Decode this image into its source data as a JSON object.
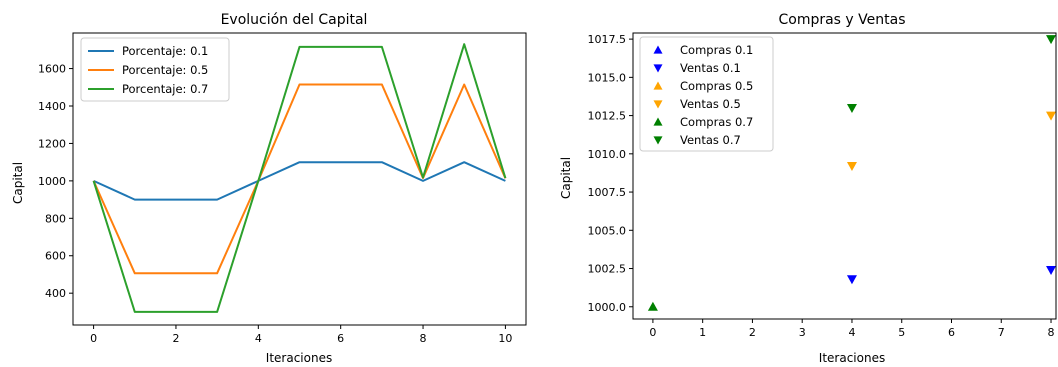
{
  "chart_data": [
    {
      "type": "line",
      "title": "Evolución del Capital",
      "xlabel": "Iteraciones",
      "ylabel": "Capital",
      "xlim": [
        -0.5,
        10.5
      ],
      "ylim": [
        230,
        1790
      ],
      "xticks": [
        "0",
        "2",
        "4",
        "6",
        "8",
        "10"
      ],
      "yticks": [
        "400",
        "600",
        "800",
        "1000",
        "1200",
        "1400",
        "1600"
      ],
      "legend_position": "upper-left",
      "x": [
        0,
        1,
        2,
        3,
        4,
        5,
        6,
        7,
        8,
        9,
        10
      ],
      "series": [
        {
          "name": "Porcentaje: 0.1",
          "color": "#1f77b4",
          "values": [
            1000,
            900,
            900,
            900,
            1000,
            1100,
            1100,
            1100,
            1000,
            1100,
            1000
          ]
        },
        {
          "name": "Porcentaje: 0.5",
          "color": "#ff7f0e",
          "values": [
            1000,
            506,
            506,
            506,
            1000,
            1515,
            1515,
            1515,
            1015,
            1515,
            1013
          ]
        },
        {
          "name": "Porcentaje: 0.7",
          "color": "#2ca02c",
          "values": [
            1000,
            300,
            300,
            300,
            1000,
            1716,
            1716,
            1716,
            1018,
            1730,
            1015
          ]
        }
      ]
    },
    {
      "type": "scatter",
      "title": "Compras y Ventas",
      "xlabel": "Iteraciones",
      "ylabel": "Capital",
      "xlim": [
        -0.4,
        8.1
      ],
      "ylim": [
        999.2,
        1017.9
      ],
      "xticks": [
        "0",
        "1",
        "2",
        "3",
        "4",
        "5",
        "6",
        "7",
        "8"
      ],
      "yticks": [
        "1000.0",
        "1002.5",
        "1005.0",
        "1007.5",
        "1010.0",
        "1012.5",
        "1015.0",
        "1017.5"
      ],
      "legend_position": "upper-left",
      "series": [
        {
          "name": "Compras 0.1",
          "color": "#0000ff",
          "marker": "triangle-up",
          "points": []
        },
        {
          "name": "Ventas 0.1",
          "color": "#0000ff",
          "marker": "triangle-down",
          "points": [
            [
              4,
              1001.8
            ],
            [
              8,
              1002.4
            ]
          ]
        },
        {
          "name": "Compras 0.5",
          "color": "#ffa500",
          "marker": "triangle-up",
          "points": []
        },
        {
          "name": "Ventas 0.5",
          "color": "#ffa500",
          "marker": "triangle-down",
          "points": [
            [
              4,
              1009.2
            ],
            [
              8,
              1012.5
            ]
          ]
        },
        {
          "name": "Compras 0.7",
          "color": "#008000",
          "marker": "triangle-up",
          "points": [
            [
              0,
              1000.0
            ]
          ]
        },
        {
          "name": "Ventas 0.7",
          "color": "#008000",
          "marker": "triangle-down",
          "points": [
            [
              4,
              1013.0
            ],
            [
              8,
              1017.5
            ]
          ]
        }
      ]
    }
  ]
}
